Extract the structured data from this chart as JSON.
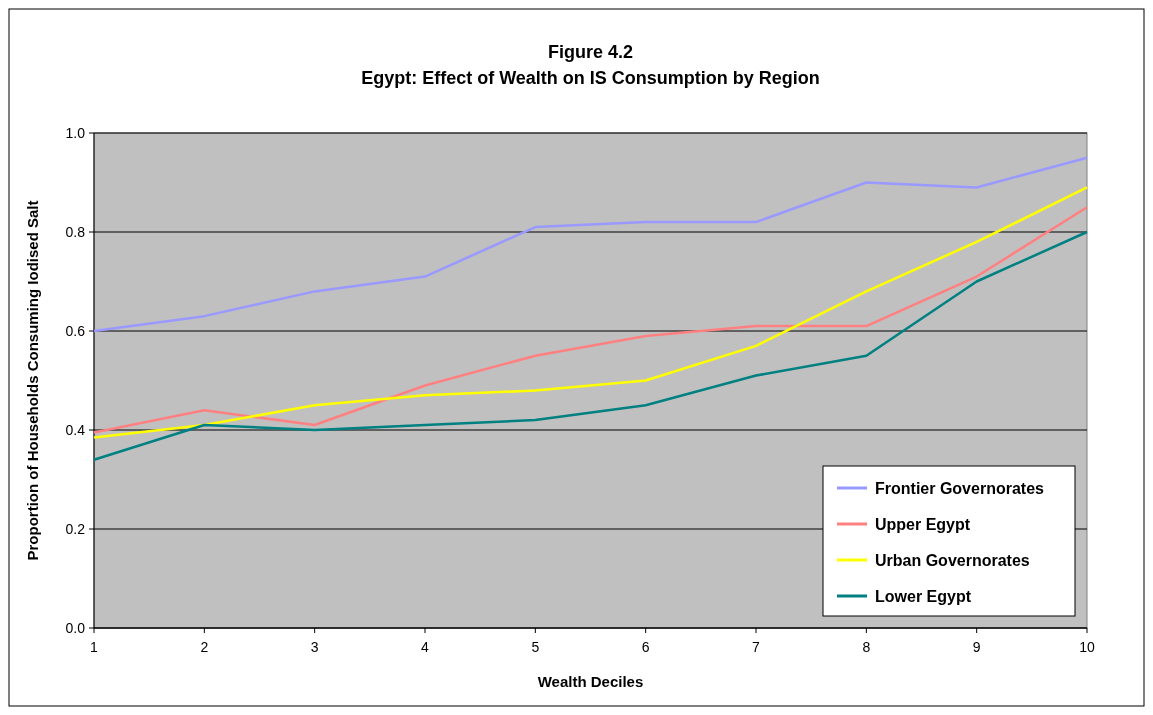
{
  "chart_data": {
    "type": "line",
    "title": "Figure 4.2",
    "subtitle": "Egypt: Effect of Wealth on IS Consumption by Region",
    "xlabel": "Wealth Deciles",
    "ylabel": "Proportion of Households Consuming Iodised Salt",
    "x": [
      1,
      2,
      3,
      4,
      5,
      6,
      7,
      8,
      9,
      10
    ],
    "xlim": [
      1,
      10
    ],
    "xticks": [
      1,
      2,
      3,
      4,
      5,
      6,
      7,
      8,
      9,
      10
    ],
    "ylim": [
      0,
      1
    ],
    "yticks": [
      {
        "value": 0,
        "label": "0.0"
      },
      {
        "value": 0.2,
        "label": "0.2"
      },
      {
        "value": 0.4,
        "label": "0.4"
      },
      {
        "value": 0.6,
        "label": "0.6"
      },
      {
        "value": 0.8,
        "label": "0.8"
      },
      {
        "value": 1,
        "label": "1.0"
      }
    ],
    "grid": "y",
    "legend": "bottom right",
    "marker": "none",
    "line_style": "solid",
    "series": [
      {
        "name": "Frontier Governorates",
        "color": "#9999ff",
        "values": [
          0.6,
          0.63,
          0.68,
          0.71,
          0.81,
          0.82,
          0.82,
          0.9,
          0.89,
          0.95
        ]
      },
      {
        "name": "Upper Egypt",
        "color": "#ff8080",
        "values": [
          0.395,
          0.44,
          0.41,
          0.49,
          0.55,
          0.59,
          0.61,
          0.61,
          0.71,
          0.85
        ]
      },
      {
        "name": "Urban Governorates",
        "color": "#ffff00",
        "values": [
          0.385,
          0.41,
          0.45,
          0.47,
          0.48,
          0.5,
          0.57,
          0.68,
          0.78,
          0.89
        ]
      },
      {
        "name": "Lower Egypt",
        "color": "#008080",
        "values": [
          0.34,
          0.41,
          0.4,
          0.41,
          0.42,
          0.45,
          0.51,
          0.55,
          0.7,
          0.8
        ]
      }
    ]
  }
}
